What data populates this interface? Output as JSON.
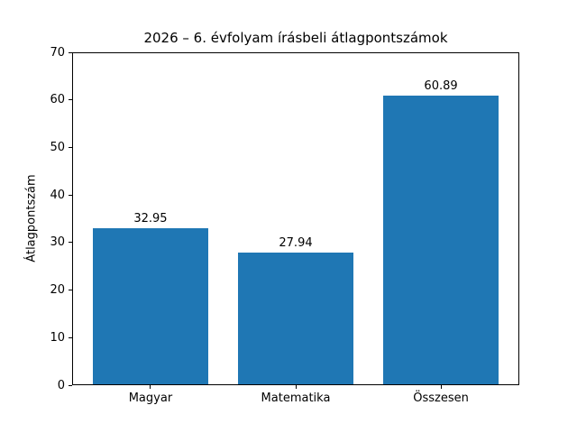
{
  "chart_data": {
    "type": "bar",
    "title": "2026 – 6. évfolyam írásbeli átlagpontszámok",
    "ylabel": "Átlagpontszám",
    "xlabel": "",
    "categories": [
      "Magyar",
      "Matematika",
      "Összesen"
    ],
    "values": [
      32.95,
      27.94,
      60.89
    ],
    "value_labels": [
      "32.95",
      "27.94",
      "60.89"
    ],
    "ylim": [
      0,
      70
    ],
    "yticks": [
      0,
      10,
      20,
      30,
      40,
      50,
      60,
      70
    ],
    "bar_color": "#1f77b4",
    "background_color": "#ffffff",
    "axis_color": "#000000",
    "grid": false,
    "legend": false
  }
}
